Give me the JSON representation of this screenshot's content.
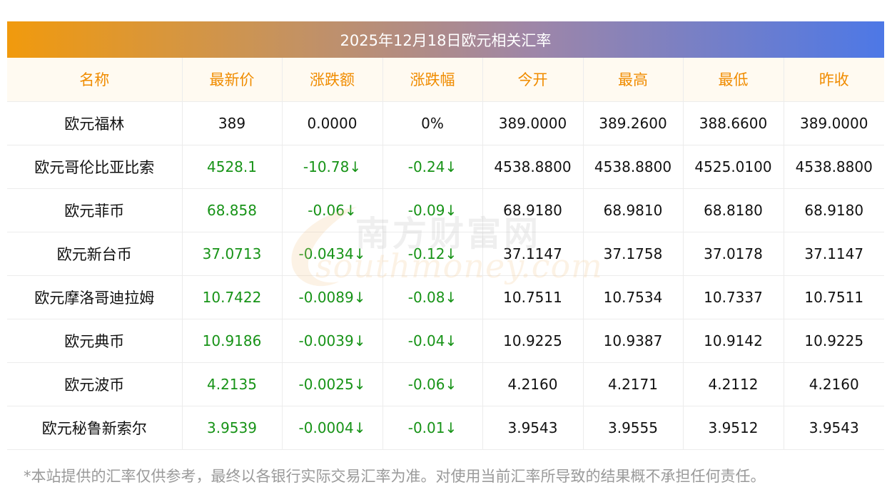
{
  "title": "2025年12月18日欧元相关汇率",
  "headers": [
    "名称",
    "最新价",
    "涨跌额",
    "涨跌幅",
    "今开",
    "最高",
    "最低",
    "昨收"
  ],
  "rows": [
    {
      "name": "欧元福林",
      "latest": "389",
      "change": "0.0000",
      "pct": "0%",
      "open": "389.0000",
      "high": "389.2600",
      "low": "388.6600",
      "prev": "389.0000",
      "trend": "flat"
    },
    {
      "name": "欧元哥伦比亚比索",
      "latest": "4528.1",
      "change": "-10.78↓",
      "pct": "-0.24↓",
      "open": "4538.8800",
      "high": "4538.8800",
      "low": "4525.0100",
      "prev": "4538.8800",
      "trend": "down"
    },
    {
      "name": "欧元菲币",
      "latest": "68.858",
      "change": "-0.06↓",
      "pct": "-0.09↓",
      "open": "68.9180",
      "high": "68.9810",
      "low": "68.8180",
      "prev": "68.9180",
      "trend": "down"
    },
    {
      "name": "欧元新台币",
      "latest": "37.0713",
      "change": "-0.0434↓",
      "pct": "-0.12↓",
      "open": "37.1147",
      "high": "37.1758",
      "low": "37.0178",
      "prev": "37.1147",
      "trend": "down"
    },
    {
      "name": "欧元摩洛哥迪拉姆",
      "latest": "10.7422",
      "change": "-0.0089↓",
      "pct": "-0.08↓",
      "open": "10.7511",
      "high": "10.7534",
      "low": "10.7337",
      "prev": "10.7511",
      "trend": "down"
    },
    {
      "name": "欧元典币",
      "latest": "10.9186",
      "change": "-0.0039↓",
      "pct": "-0.04↓",
      "open": "10.9225",
      "high": "10.9387",
      "low": "10.9142",
      "prev": "10.9225",
      "trend": "down"
    },
    {
      "name": "欧元波币",
      "latest": "4.2135",
      "change": "-0.0025↓",
      "pct": "-0.06↓",
      "open": "4.2160",
      "high": "4.2171",
      "low": "4.2112",
      "prev": "4.2160",
      "trend": "down"
    },
    {
      "name": "欧元秘鲁新索尔",
      "latest": "3.9539",
      "change": "-0.0004↓",
      "pct": "-0.01↓",
      "open": "3.9543",
      "high": "3.9555",
      "low": "3.9512",
      "prev": "3.9543",
      "trend": "down"
    }
  ],
  "watermark": {
    "cn": "南方财富网",
    "en": "southmoney.com"
  },
  "footnote": "*本站提供的汇率仅供参考，最终以各银行实际交易汇率为准。对使用当前汇率所导致的结果概不承担任何责任。",
  "colors": {
    "accent": "#f08c00",
    "down": "#179317",
    "header_bg": "#fffaf1",
    "title_start": "#f19a0d",
    "title_end": "#4d78e6"
  }
}
